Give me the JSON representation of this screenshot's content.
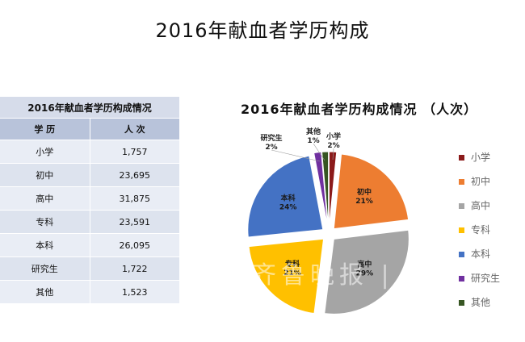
{
  "slide": {
    "title": "2016年献血者学历构成"
  },
  "table": {
    "caption": "2016年献血者学历构成情况",
    "headers": [
      "学 历",
      "人 次"
    ],
    "rows": [
      {
        "name": "小学",
        "count": "1,757"
      },
      {
        "name": "初中",
        "count": "23,695"
      },
      {
        "name": "高中",
        "count": "31,875"
      },
      {
        "name": "专科",
        "count": "23,591"
      },
      {
        "name": "本科",
        "count": "26,095"
      },
      {
        "name": "研究生",
        "count": "1,722"
      },
      {
        "name": "其他",
        "count": "1,523"
      }
    ]
  },
  "watermark": "齐鲁晚报 | 齐",
  "chart_data": {
    "type": "pie",
    "title": "2016年献血者学历构成情况 （人次）",
    "categories": [
      "小学",
      "初中",
      "高中",
      "专科",
      "本科",
      "研究生",
      "其他"
    ],
    "values": [
      1757,
      23695,
      31875,
      23591,
      26095,
      1722,
      1523
    ],
    "labels": [
      "小学\n2%",
      "初中\n21%",
      "高中\n29%",
      "专科\n21%",
      "本科\n24%",
      "研究生\n2%",
      "其他\n1%"
    ],
    "colors": [
      "#8b1a1a",
      "#ed7d31",
      "#a5a5a5",
      "#ffc000",
      "#4472c4",
      "#7030a0",
      "#375623"
    ],
    "legend_position": "right",
    "exploded": true
  }
}
